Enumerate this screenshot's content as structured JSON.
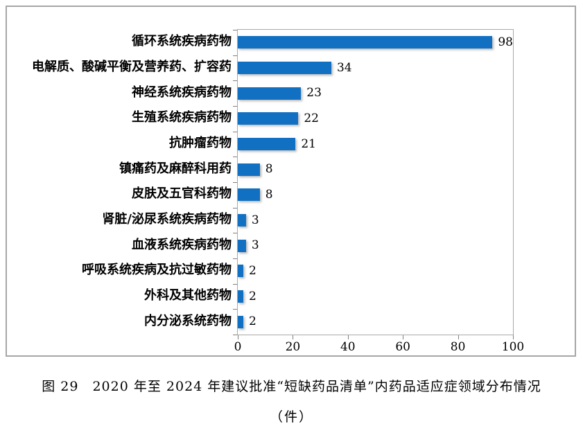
{
  "chart_data": {
    "type": "bar",
    "orientation": "horizontal",
    "title": "",
    "xlabel": "",
    "ylabel": "",
    "categories": [
      "循环系统疾病药物",
      "电解质、酸碱平衡及营养药、扩容药",
      "神经系统疾病药物",
      "生殖系统疾病药物",
      "抗肿瘤药物",
      "镇痛药及麻醉科用药",
      "皮肤及五官科药物",
      "肾脏/泌尿系统疾病药物",
      "血液系统疾病药物",
      "呼吸系统疾病及抗过敏药物",
      "外科及其他药物",
      "内分泌系统药物"
    ],
    "values": [
      98,
      34,
      23,
      22,
      21,
      8,
      8,
      3,
      3,
      2,
      2,
      2
    ],
    "data_labels": [
      "98",
      "34",
      "23",
      "22",
      "21",
      "8",
      "8",
      "3",
      "3",
      "2",
      "2",
      "2"
    ],
    "xlim": [
      0,
      100
    ],
    "x_ticks": [
      "0",
      "20",
      "40",
      "60",
      "80",
      "100"
    ],
    "x_tick_values": [
      0,
      20,
      40,
      60,
      80,
      100
    ],
    "grid": false,
    "legend": "none",
    "bar_color": "#1170c2",
    "frame_border_color": "#a6a6a6"
  },
  "caption": {
    "line1": "图 29　2020 年至 2024 年建议批准“短缺药品清单”内药品适应症领域分布情况",
    "line2": "（件）"
  }
}
